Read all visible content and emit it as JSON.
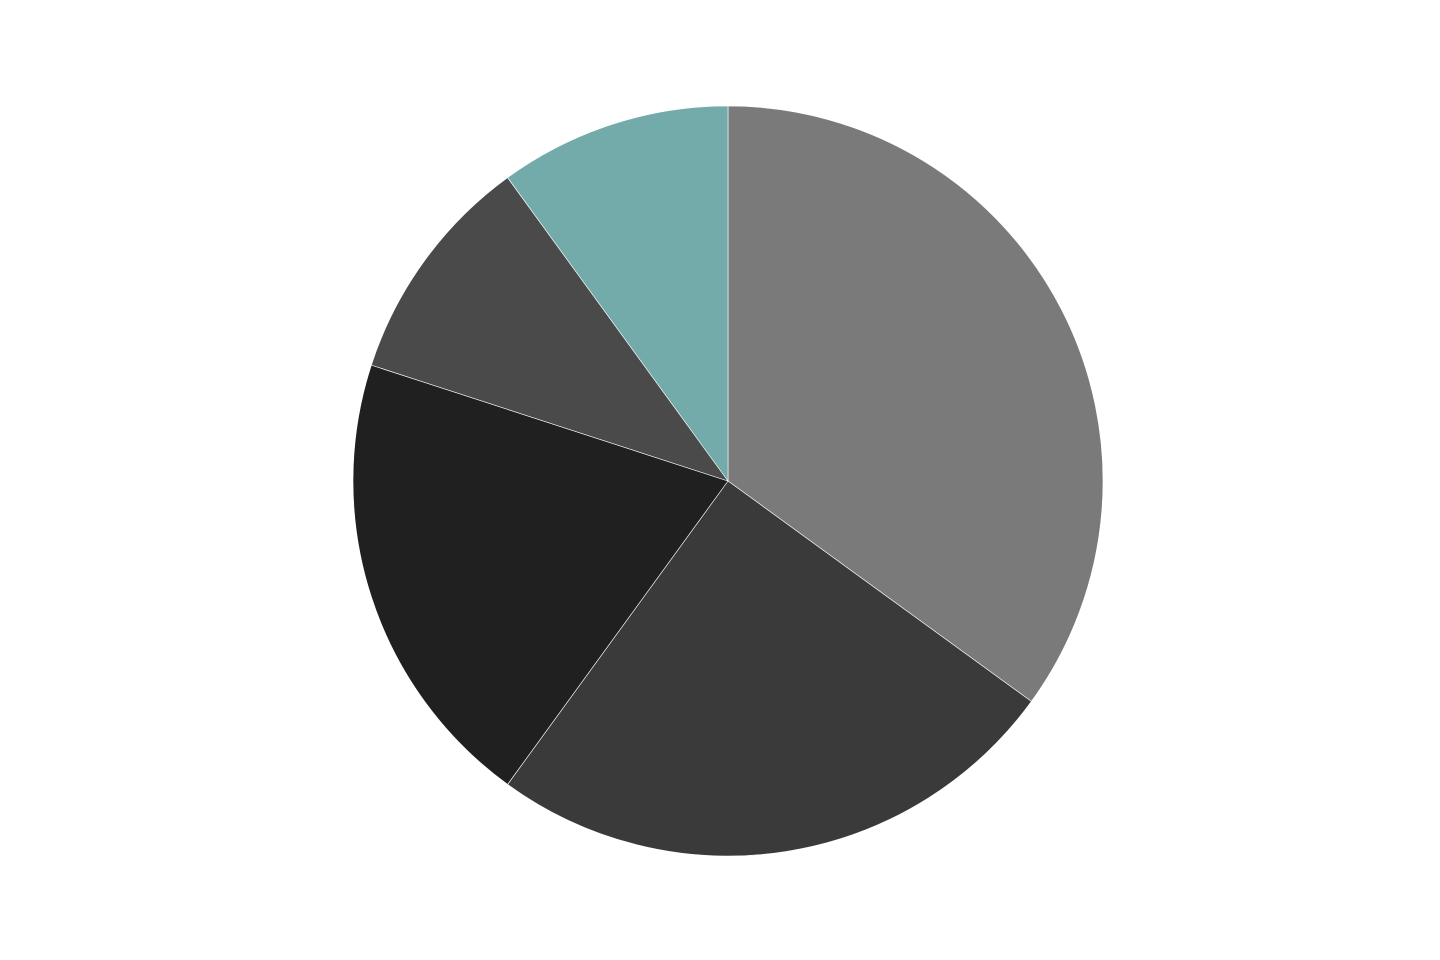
{
  "chart_data": {
    "type": "pie",
    "start_angle": "top, clockwise",
    "slices": [
      {
        "value": 35,
        "color": "#7a7a7a"
      },
      {
        "value": 25,
        "color": "#3a3a3a"
      },
      {
        "value": 20,
        "color": "#202020"
      },
      {
        "value": 10,
        "color": "#4a4a4a"
      },
      {
        "value": 10,
        "color": "#73aaaa"
      }
    ]
  }
}
